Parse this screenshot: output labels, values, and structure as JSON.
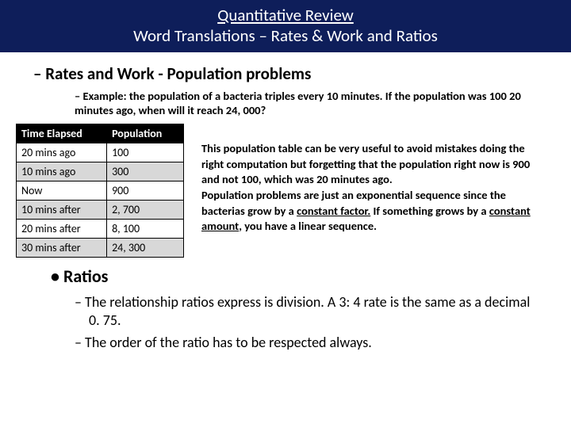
{
  "header": {
    "line1": "Quantitative Review",
    "line2": "Word Translations – Rates & Work and Ratios"
  },
  "subheading": "Rates and Work - Population problems",
  "example": "Example: the population of a bacteria triples every 10 minutes. If the population was 100 20 minutes ago, when will it reach 24, 000?",
  "table": {
    "col1": "Time Elapsed",
    "col2": "Population",
    "rows": [
      {
        "t": "20 mins ago",
        "p": "100"
      },
      {
        "t": "10 mins ago",
        "p": "300"
      },
      {
        "t": "Now",
        "p": "900"
      },
      {
        "t": "10 mins after",
        "p": "2, 700"
      },
      {
        "t": "20 mins after",
        "p": "8, 100"
      },
      {
        "t": "30 mins after",
        "p": "24, 300"
      }
    ]
  },
  "explain": {
    "p1a": "This population table can be very useful to avoid mistakes doing the right computation but forgetting that the population right now is 900 and not 100, which was 20 minutes ago.",
    "p2a": "Population problems are just an exponential sequence since the bacterias grow by a ",
    "p2u1": "constant factor.",
    "p2b": " If something grows by a ",
    "p2u2": "constant amount",
    "p2c": ", you have a linear sequence."
  },
  "ratios": {
    "heading": "Ratios",
    "item1": "The relationship ratios express is division. A 3: 4 rate is the same as a decimal 0. 75.",
    "item2": "The order of the ratio has to be respected always."
  },
  "colors": {
    "header_bg": "#0e1e5a",
    "header_text": "#ffffff",
    "table_header_bg": "#000000",
    "row_alt_bg": "#d8d8d8",
    "page_bg": "#ffffff"
  }
}
